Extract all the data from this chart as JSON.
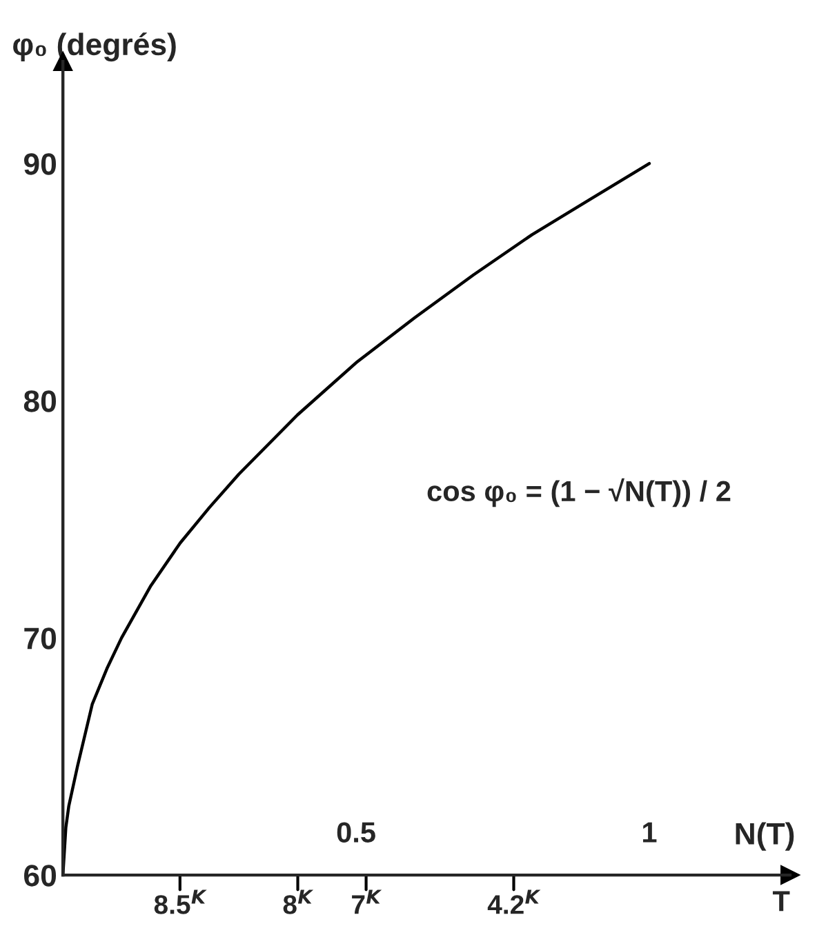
{
  "chart_data": {
    "type": "line",
    "ylabel": "φ₀ (degrés)",
    "xlabel": "N(T)",
    "annotations": [
      "cos φ₀ = (1 − √N(T)) / 2",
      "T",
      "8.5$^{K}$",
      "8$^{K}$",
      "7$^{K}$",
      "4.2$^{K}$"
    ],
    "series": [
      {
        "color": "#000000",
        "x": [
          0,
          0.005,
          0.01,
          0.025,
          0.05,
          0.075,
          0.1,
          0.15,
          0.2,
          0.25,
          0.3,
          0.4,
          0.5,
          0.6,
          0.7,
          0.8,
          0.9,
          1
        ],
        "values": [
          60,
          62.0,
          62.9,
          64.6,
          67.2,
          68.7,
          70.0,
          72.2,
          74.0,
          75.5,
          76.9,
          79.4,
          81.6,
          83.5,
          85.3,
          87.0,
          88.5,
          90
        ]
      }
    ],
    "xlim": [
      0,
      1.24
    ],
    "ylim": [
      60,
      94.3
    ],
    "xticks": [
      0.5,
      1
    ],
    "yticks": [
      60,
      70,
      80,
      90
    ],
    "grid": false,
    "legend": false,
    "marker": "none",
    "line_style": "solid"
  }
}
